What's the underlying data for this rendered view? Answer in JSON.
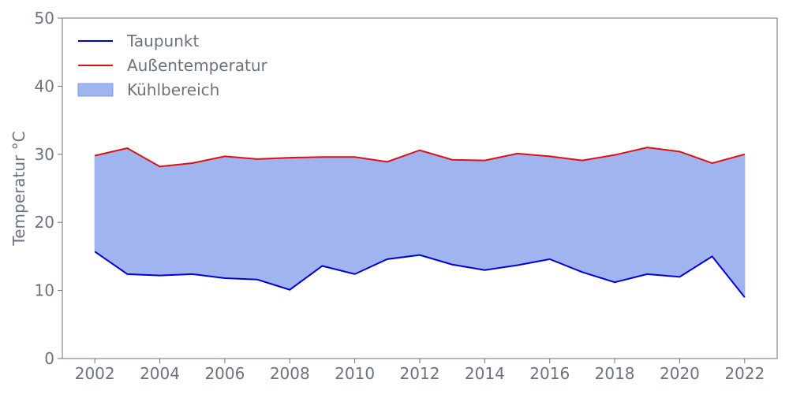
{
  "chart_data": {
    "type": "line",
    "title": "",
    "xlabel": "",
    "ylabel": "Temperatur °C",
    "xlim": [
      2001,
      2023
    ],
    "ylim": [
      0,
      50
    ],
    "x_ticks": [
      2002,
      2004,
      2006,
      2008,
      2010,
      2012,
      2014,
      2016,
      2018,
      2020,
      2022
    ],
    "y_ticks": [
      0,
      10,
      20,
      30,
      40,
      50
    ],
    "grid": false,
    "legend_position": "top-left",
    "x": [
      2002,
      2003,
      2004,
      2005,
      2006,
      2007,
      2008,
      2009,
      2010,
      2011,
      2012,
      2013,
      2014,
      2015,
      2016,
      2017,
      2018,
      2019,
      2020,
      2021,
      2022
    ],
    "series": [
      {
        "name": "Taupunkt",
        "color": "#0000dd",
        "values": [
          15.7,
          12.4,
          12.2,
          12.4,
          11.8,
          11.6,
          10.1,
          13.6,
          12.4,
          14.6,
          15.2,
          13.8,
          13.0,
          13.7,
          14.6,
          12.7,
          11.2,
          12.4,
          12.0,
          15.0,
          9.0
        ]
      },
      {
        "name": "Außentemperatur",
        "color": "#dd1111",
        "values": [
          29.8,
          30.9,
          28.2,
          28.7,
          29.7,
          29.3,
          29.5,
          29.6,
          29.6,
          28.9,
          30.6,
          29.2,
          29.1,
          30.1,
          29.7,
          29.1,
          29.9,
          31.0,
          30.4,
          28.7,
          30.0
        ]
      }
    ],
    "fill": {
      "name": "Kühlbereich",
      "color": "#a0b4f0",
      "between": [
        "Taupunkt",
        "Außentemperatur"
      ]
    },
    "legend": [
      "Taupunkt",
      "Außentemperatur",
      "Kühlbereich"
    ]
  }
}
